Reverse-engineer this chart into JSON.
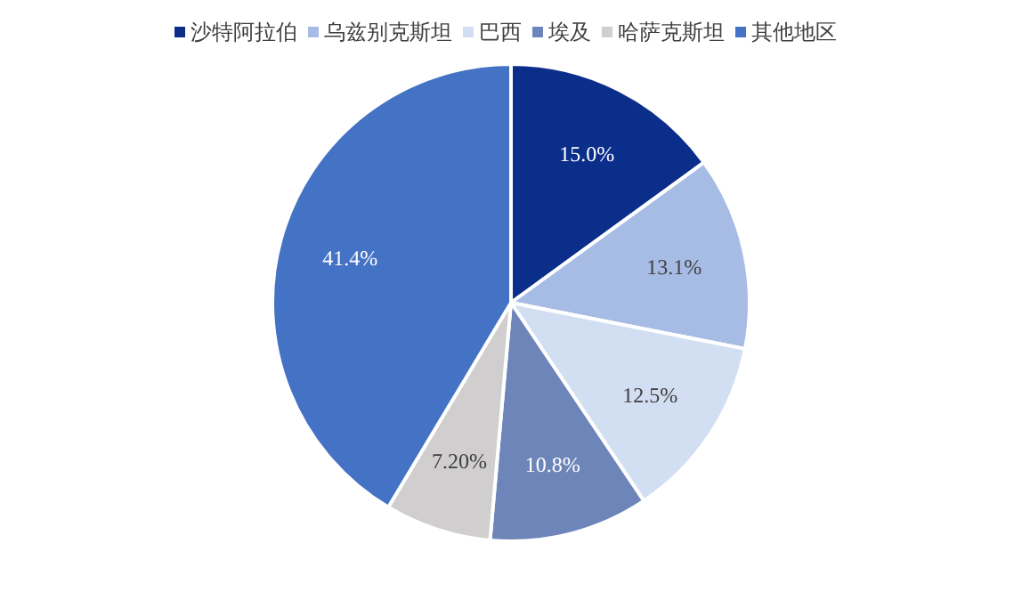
{
  "chart_data": {
    "type": "pie",
    "categories": [
      "沙特阿拉伯",
      "乌兹别克斯坦",
      "巴西",
      "埃及",
      "哈萨克斯坦",
      "其他地区"
    ],
    "values": [
      15.0,
      13.1,
      12.5,
      10.8,
      7.2,
      41.4
    ],
    "value_labels": [
      "15.0%",
      "13.1%",
      "12.5%",
      "10.8%",
      "7.20%",
      "41.4%"
    ],
    "colors": [
      "#0b2e8a",
      "#a7bce5",
      "#d2def2",
      "#6d85b8",
      "#d0cece",
      "#4472c4"
    ],
    "legend": "top"
  }
}
